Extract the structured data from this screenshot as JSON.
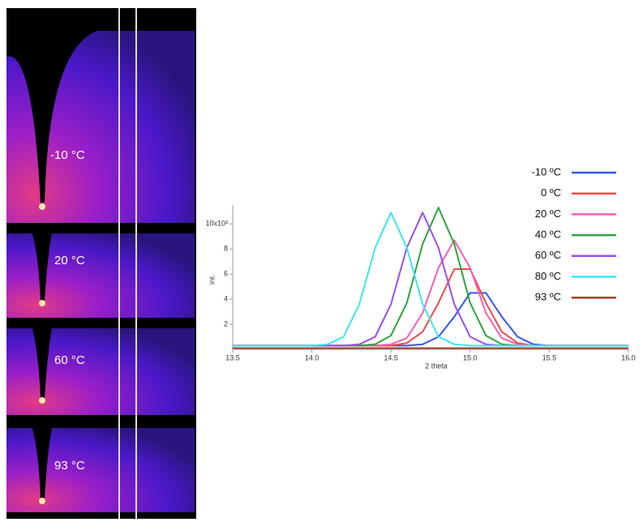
{
  "image_panels": [
    "-10 °C",
    "20 °C",
    "60 °C",
    "93 °C"
  ],
  "chart_data": {
    "type": "line",
    "x_label": "2 theta",
    "y_label": "int.",
    "x": [
      13.5,
      13.6,
      13.7,
      13.8,
      13.9,
      14.0,
      14.1,
      14.2,
      14.3,
      14.4,
      14.5,
      14.6,
      14.7,
      14.8,
      14.9,
      15.0,
      15.1,
      15.2,
      15.3,
      15.4,
      15.5,
      15.6,
      15.7,
      15.8,
      15.9,
      16.0
    ],
    "xlim": [
      13.5,
      16.0
    ],
    "xticks": [
      13.5,
      {
        "value": 14,
        "label": "14.0"
      },
      14.5,
      {
        "value": 15,
        "label": "15.0"
      },
      15.5,
      {
        "value": 16,
        "label": "16.0"
      }
    ],
    "ylim": [
      0,
      11.5
    ],
    "yticks": [
      2,
      4,
      6,
      8,
      {
        "value": 10,
        "label": "10x10³"
      }
    ],
    "series": [
      {
        "name": "-10 ºC",
        "color": "#3355ee",
        "values": [
          0.3,
          0.3,
          0.3,
          0.3,
          0.3,
          0.3,
          0.3,
          0.3,
          0.3,
          0.3,
          0.3,
          0.3,
          0.4,
          1.0,
          2.6,
          4.5,
          4.5,
          2.6,
          1.0,
          0.4,
          0.3,
          0.3,
          0.3,
          0.3,
          0.3,
          0.3
        ]
      },
      {
        "name": "0 ºC",
        "color": "#f04a4a",
        "values": [
          0.3,
          0.3,
          0.3,
          0.3,
          0.3,
          0.3,
          0.3,
          0.3,
          0.3,
          0.3,
          0.3,
          0.5,
          1.4,
          3.7,
          6.4,
          6.4,
          3.7,
          1.4,
          0.5,
          0.3,
          0.3,
          0.3,
          0.3,
          0.3,
          0.3,
          0.3
        ]
      },
      {
        "name": "20 ºC",
        "color": "#f65fb0",
        "values": [
          0.3,
          0.3,
          0.3,
          0.3,
          0.3,
          0.3,
          0.3,
          0.3,
          0.3,
          0.3,
          0.4,
          0.9,
          2.9,
          6.5,
          8.7,
          6.5,
          2.9,
          0.9,
          0.4,
          0.3,
          0.3,
          0.3,
          0.3,
          0.3,
          0.3,
          0.3
        ]
      },
      {
        "name": "40 ºC",
        "color": "#2ea33a",
        "values": [
          0.3,
          0.3,
          0.3,
          0.3,
          0.3,
          0.3,
          0.3,
          0.3,
          0.3,
          0.4,
          1.1,
          3.7,
          8.4,
          11.3,
          8.4,
          3.7,
          1.1,
          0.4,
          0.3,
          0.3,
          0.3,
          0.3,
          0.3,
          0.3,
          0.3,
          0.3
        ]
      },
      {
        "name": "60 ºC",
        "color": "#9a4ee8",
        "values": [
          0.3,
          0.3,
          0.3,
          0.3,
          0.3,
          0.3,
          0.3,
          0.3,
          0.4,
          1.0,
          3.6,
          8.1,
          10.9,
          8.1,
          3.6,
          1.0,
          0.4,
          0.3,
          0.3,
          0.3,
          0.3,
          0.3,
          0.3,
          0.3,
          0.3,
          0.3
        ]
      },
      {
        "name": "80 ºC",
        "color": "#3ae6f0",
        "values": [
          0.3,
          0.3,
          0.3,
          0.3,
          0.3,
          0.3,
          0.4,
          1.0,
          3.6,
          8.1,
          10.9,
          8.1,
          3.6,
          1.0,
          0.4,
          0.3,
          0.3,
          0.3,
          0.3,
          0.3,
          0.3,
          0.3,
          0.3,
          0.3,
          0.3,
          0.3
        ]
      },
      {
        "name": "93 ºC",
        "color": "#a5402a",
        "values": [
          0.1,
          0.1,
          0.1,
          0.1,
          0.1,
          0.1,
          0.1,
          0.1,
          0.1,
          0.1,
          0.1,
          0.1,
          0.1,
          0.1,
          0.1,
          0.1,
          0.1,
          0.1,
          0.1,
          0.1,
          0.1,
          0.1,
          0.1,
          0.1,
          0.1,
          0.1
        ]
      }
    ]
  }
}
